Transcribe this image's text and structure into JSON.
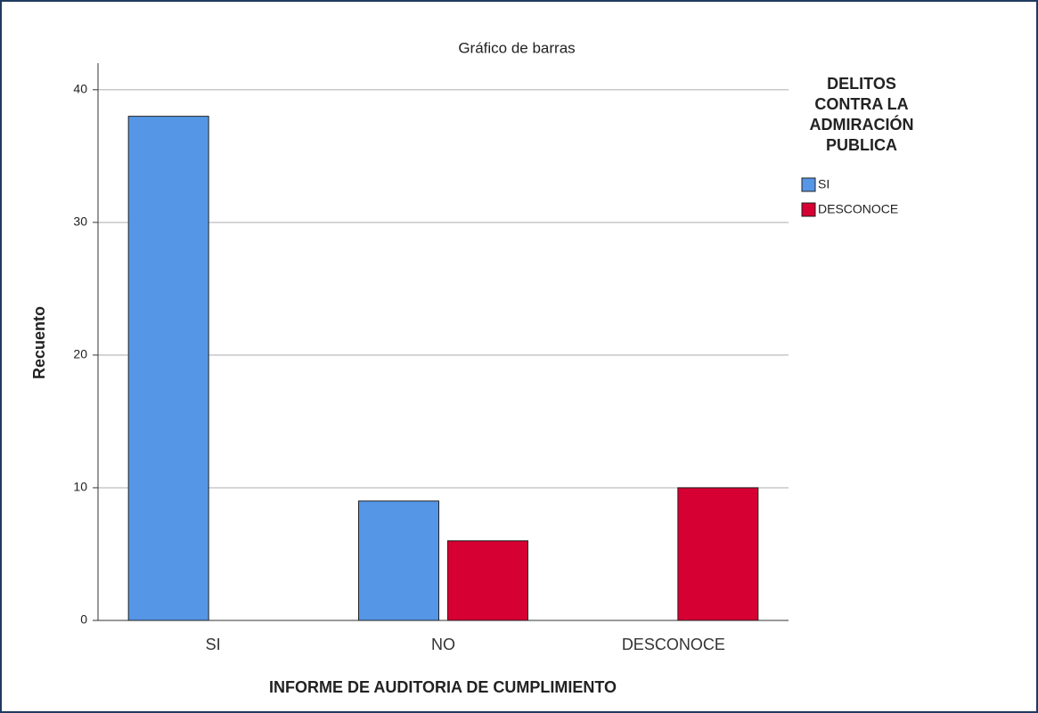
{
  "chart_data": {
    "type": "bar",
    "title": "Gráfico de barras",
    "x_label": "INFORME DE AUDITORIA DE CUMPLIMIENTO",
    "y_label": "Recuento",
    "categories": [
      "SI",
      "NO",
      "DESCONOCE"
    ],
    "series": [
      {
        "name": "SI",
        "color": "#5596e6",
        "values": [
          38,
          9,
          null
        ]
      },
      {
        "name": "DESCONOCE",
        "color": "#d60032",
        "values": [
          null,
          6,
          10
        ]
      }
    ],
    "legend_title": [
      "DELITOS",
      "CONTRA LA",
      "ADMIRACIÓN",
      "PUBLICA"
    ],
    "ylim": [
      0,
      42
    ],
    "yticks": [
      0,
      10,
      20,
      30,
      40
    ],
    "grid": true,
    "legend": "right"
  }
}
